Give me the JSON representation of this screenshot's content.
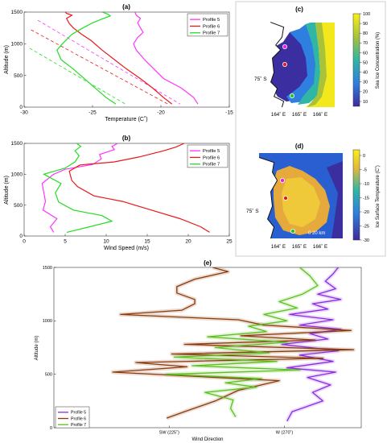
{
  "chart_data": [
    {
      "id": "a",
      "panel_label": "(a)",
      "type": "line",
      "xlabel": "Temperature (C˚)",
      "ylabel": "Altitude (m)",
      "xlim": [
        -30,
        -15
      ],
      "ylim": [
        0,
        1500
      ],
      "xticks": [
        -30,
        -25,
        -20,
        -15
      ],
      "yticks": [
        0,
        500,
        1000,
        1500
      ],
      "legend": "top-right",
      "series": [
        {
          "name": "Profile 5",
          "color": "#ff33ff",
          "x": [
            -17.3,
            -17.6,
            -18.5,
            -19.8,
            -20.5,
            -21.2,
            -21.8,
            -22.0,
            -21.7,
            -21.3,
            -21.5,
            -21.7,
            -21.5,
            -21.8,
            -21.9
          ],
          "y": [
            50,
            150,
            300,
            450,
            600,
            750,
            900,
            1000,
            1100,
            1180,
            1250,
            1330,
            1400,
            1450,
            1500
          ]
        },
        {
          "name": "Profile 6",
          "color": "#e8191a",
          "x": [
            -19.2,
            -19.8,
            -20.6,
            -21.5,
            -22.5,
            -23.4,
            -24.3,
            -25.1,
            -25.8,
            -26.4,
            -26.7,
            -26.9,
            -26.5,
            -26.9,
            -27.0
          ],
          "y": [
            50,
            150,
            300,
            450,
            600,
            750,
            900,
            1050,
            1150,
            1250,
            1320,
            1400,
            1450,
            1480,
            1500
          ]
        },
        {
          "name": "Profile 7",
          "color": "#22dd22",
          "x": [
            -23.3,
            -24.0,
            -24.8,
            -25.6,
            -26.4,
            -27.3,
            -27.6,
            -27.2,
            -26.5,
            -25.7,
            -25.0,
            -24.2,
            -23.7,
            -23.9,
            -24.3
          ],
          "y": [
            50,
            150,
            300,
            450,
            600,
            750,
            900,
            1000,
            1150,
            1250,
            1330,
            1400,
            1440,
            1470,
            1500
          ]
        }
      ],
      "reference_lines": [
        {
          "color": "#ff33ff",
          "x": [
            -29.0,
            -18.6
          ],
          "y": [
            1370,
            50
          ]
        },
        {
          "color": "#e8191a",
          "x": [
            -29.5,
            -19.5
          ],
          "y": [
            1220,
            50
          ]
        },
        {
          "color": "#22dd22",
          "x": [
            -29.6,
            -22.6
          ],
          "y": [
            930,
            50
          ]
        }
      ]
    },
    {
      "id": "b",
      "panel_label": "(b)",
      "type": "line",
      "xlabel": "Wind Speed (m/s)",
      "ylabel": "Altitude (m)",
      "xlim": [
        0,
        25
      ],
      "ylim": [
        0,
        1500
      ],
      "xticks": [
        0,
        5,
        10,
        15,
        20,
        25
      ],
      "yticks": [
        0,
        500,
        1000,
        1500
      ],
      "legend": "top-right",
      "series": [
        {
          "name": "Profile 5",
          "color": "#ff33ff",
          "x": [
            3.6,
            3.2,
            4.0,
            2.3,
            2.6,
            2.4,
            2.2,
            3.6,
            5.0,
            8.4,
            9.4,
            9.2,
            11.0,
            10.7,
            11.4
          ],
          "y": [
            60,
            150,
            280,
            420,
            560,
            700,
            850,
            1000,
            1080,
            1160,
            1250,
            1320,
            1400,
            1450,
            1500
          ]
        },
        {
          "name": "Profile 6",
          "color": "#e8191a",
          "x": [
            22.6,
            21.5,
            19.0,
            15.5,
            12.0,
            8.5,
            6.5,
            5.8,
            5.5,
            6.8,
            11.0,
            14.0,
            17.0,
            18.5,
            19.5
          ],
          "y": [
            60,
            150,
            280,
            420,
            560,
            650,
            800,
            900,
            1050,
            1150,
            1200,
            1280,
            1380,
            1440,
            1500
          ]
        },
        {
          "name": "Profile 7",
          "color": "#22dd22",
          "x": [
            5.2,
            8.0,
            10.7,
            9.5,
            6.0,
            4.2,
            3.8,
            4.5,
            2.4,
            5.0,
            6.2,
            6.7,
            6.2,
            6.9,
            6.4
          ],
          "y": [
            60,
            150,
            240,
            330,
            420,
            550,
            700,
            850,
            1000,
            1100,
            1200,
            1300,
            1380,
            1450,
            1500
          ]
        }
      ]
    },
    {
      "id": "c",
      "panel_label": "(c)",
      "type": "heatmap",
      "colorbar_label": "Sea Ice Concentration (%)",
      "colorbar_ticks": [
        10,
        20,
        30,
        40,
        50,
        60,
        70,
        80,
        90,
        100
      ],
      "colorbar_range": [
        5,
        100
      ],
      "lat_label": "75˚ S",
      "lon_labels": [
        "164˚ E",
        "165˚ E",
        "166˚ E"
      ],
      "markers": [
        {
          "name": "Profile 5",
          "color": "#e81ee8"
        },
        {
          "name": "Profile 6",
          "color": "#e8191a"
        },
        {
          "name": "Profile 7",
          "color": "#22c522"
        }
      ]
    },
    {
      "id": "d",
      "panel_label": "(d)",
      "type": "heatmap",
      "colorbar_label": "Ice Surface Temperature (C˚)",
      "colorbar_ticks": [
        0,
        -5,
        -10,
        -15,
        -20,
        -25,
        -30
      ],
      "colorbar_range": [
        -30,
        2
      ],
      "lat_label": "75˚ S",
      "lon_labels": [
        "164˚ E",
        "165˚ E",
        "166˚ E"
      ],
      "scale_label": "0   20 km",
      "markers": [
        {
          "name": "Profile 5",
          "color": "#e81ee8"
        },
        {
          "name": "Profile 6",
          "color": "#e8191a"
        },
        {
          "name": "Profile 7",
          "color": "#22c522"
        }
      ]
    },
    {
      "id": "e",
      "panel_label": "(e)",
      "type": "line",
      "xlabel": "Wind Direction",
      "ylabel": "Altitude (m)",
      "xlim": [
        180,
        300
      ],
      "ylim": [
        0,
        1500
      ],
      "xticks": [
        225,
        270
      ],
      "xticklabels": [
        "SW (225˚)",
        "W (270˚)"
      ],
      "yticks": [
        0,
        500,
        1000,
        1500
      ],
      "legend": "bottom-left",
      "series": [
        {
          "name": "Profile 5",
          "color": "#8a2be2",
          "x": [
            271,
            273,
            285,
            281,
            288,
            279,
            290,
            271,
            289,
            276,
            291,
            269,
            287,
            280,
            292,
            276,
            289,
            272,
            287,
            281,
            292,
            283,
            290,
            286,
            289,
            291
          ],
          "y": [
            60,
            150,
            250,
            330,
            400,
            470,
            520,
            560,
            620,
            680,
            720,
            780,
            830,
            880,
            920,
            960,
            1010,
            1060,
            1110,
            1160,
            1200,
            1250,
            1300,
            1370,
            1440,
            1500
          ]
        },
        {
          "name": "Profile 6",
          "color": "#8b3a0a",
          "x": [
            224,
            231,
            243,
            252,
            268,
            203,
            232,
            212,
            285,
            226,
            297,
            231,
            282,
            253,
            296,
            262,
            252,
            206,
            230,
            235,
            235,
            228,
            228,
            235,
            248,
            242
          ],
          "y": [
            90,
            150,
            250,
            350,
            440,
            520,
            570,
            610,
            650,
            690,
            730,
            780,
            820,
            860,
            910,
            960,
            1010,
            1060,
            1100,
            1160,
            1200,
            1260,
            1320,
            1390,
            1460,
            1500
          ]
        },
        {
          "name": "Profile 7",
          "color": "#5fbf1f",
          "x": [
            251,
            249,
            250,
            239,
            259,
            247,
            261,
            224,
            276,
            234,
            267,
            227,
            264,
            243,
            271,
            240,
            263,
            256,
            271,
            262,
            275,
            268,
            277,
            283,
            280,
            276
          ],
          "y": [
            100,
            180,
            260,
            330,
            380,
            420,
            460,
            500,
            540,
            580,
            620,
            660,
            700,
            750,
            800,
            850,
            900,
            950,
            1000,
            1060,
            1120,
            1180,
            1250,
            1330,
            1420,
            1500
          ]
        }
      ]
    }
  ]
}
